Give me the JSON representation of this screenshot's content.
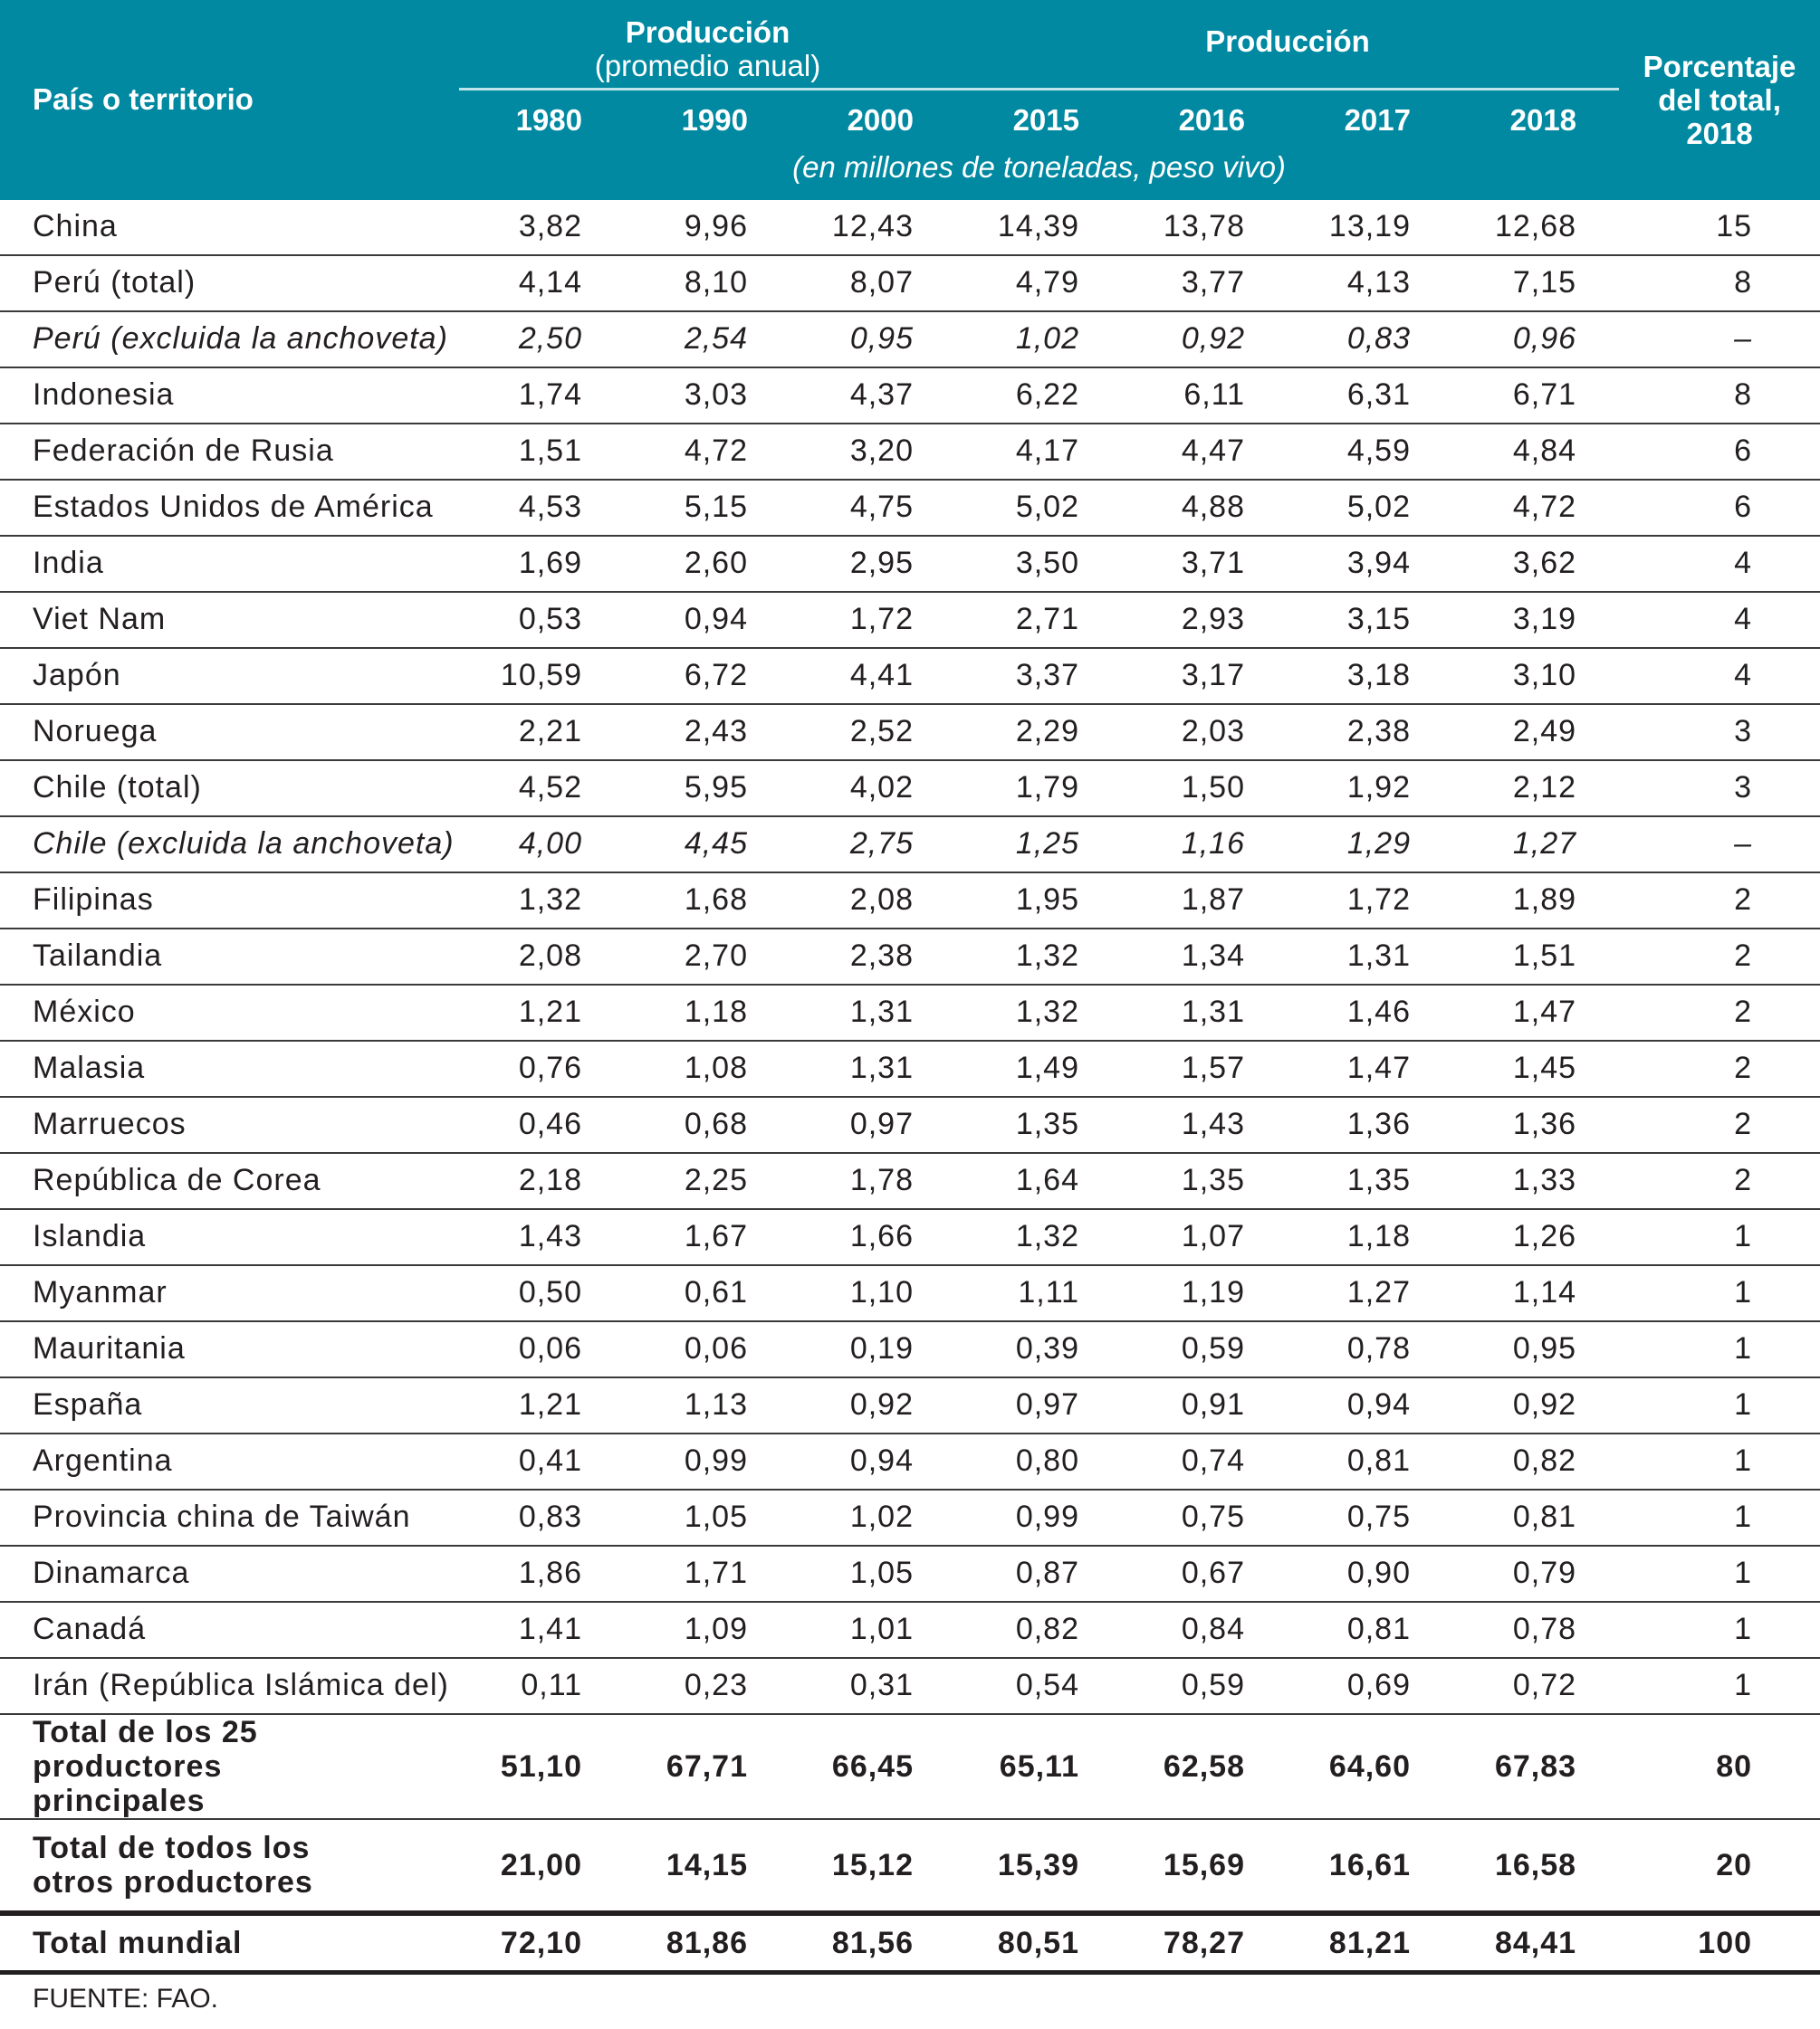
{
  "header": {
    "country_col": "País o territorio",
    "group1_title": "Producción",
    "group1_sub": "(promedio anual)",
    "group2_title": "Producción",
    "pct_col": [
      "Porcentaje",
      "del total,",
      "2018"
    ],
    "years": [
      "1980",
      "1990",
      "2000",
      "2015",
      "2016",
      "2017",
      "2018"
    ],
    "units": "(en millones de toneladas, peso vivo)"
  },
  "rows": [
    {
      "name": "China",
      "v": [
        "3,82",
        "9,96",
        "12,43",
        "14,39",
        "13,78",
        "13,19",
        "12,68"
      ],
      "pct": "15"
    },
    {
      "name": "Perú (total)",
      "v": [
        "4,14",
        "8,10",
        "8,07",
        "4,79",
        "3,77",
        "4,13",
        "7,15"
      ],
      "pct": "8"
    },
    {
      "name": "Perú (excluida la anchoveta)",
      "v": [
        "2,50",
        "2,54",
        "0,95",
        "1,02",
        "0,92",
        "0,83",
        "0,96"
      ],
      "pct": "–",
      "italic": true
    },
    {
      "name": "Indonesia",
      "v": [
        "1,74",
        "3,03",
        "4,37",
        "6,22",
        "6,11",
        "6,31",
        "6,71"
      ],
      "pct": "8"
    },
    {
      "name": "Federación de Rusia",
      "v": [
        "1,51",
        "4,72",
        "3,20",
        "4,17",
        "4,47",
        "4,59",
        "4,84"
      ],
      "pct": "6"
    },
    {
      "name": "Estados Unidos de América",
      "v": [
        "4,53",
        "5,15",
        "4,75",
        "5,02",
        "4,88",
        "5,02",
        "4,72"
      ],
      "pct": "6"
    },
    {
      "name": "India",
      "v": [
        "1,69",
        "2,60",
        "2,95",
        "3,50",
        "3,71",
        "3,94",
        "3,62"
      ],
      "pct": "4"
    },
    {
      "name": "Viet Nam",
      "v": [
        "0,53",
        "0,94",
        "1,72",
        "2,71",
        "2,93",
        "3,15",
        "3,19"
      ],
      "pct": "4"
    },
    {
      "name": "Japón",
      "v": [
        "10,59",
        "6,72",
        "4,41",
        "3,37",
        "3,17",
        "3,18",
        "3,10"
      ],
      "pct": "4"
    },
    {
      "name": "Noruega",
      "v": [
        "2,21",
        "2,43",
        "2,52",
        "2,29",
        "2,03",
        "2,38",
        "2,49"
      ],
      "pct": "3"
    },
    {
      "name": "Chile (total)",
      "v": [
        "4,52",
        "5,95",
        "4,02",
        "1,79",
        "1,50",
        "1,92",
        "2,12"
      ],
      "pct": "3"
    },
    {
      "name": "Chile (excluida la anchoveta)",
      "v": [
        "4,00",
        "4,45",
        "2,75",
        "1,25",
        "1,16",
        "1,29",
        "1,27"
      ],
      "pct": "–",
      "italic": true
    },
    {
      "name": "Filipinas",
      "v": [
        "1,32",
        "1,68",
        "2,08",
        "1,95",
        "1,87",
        "1,72",
        "1,89"
      ],
      "pct": "2"
    },
    {
      "name": "Tailandia",
      "v": [
        "2,08",
        "2,70",
        "2,38",
        "1,32",
        "1,34",
        "1,31",
        "1,51"
      ],
      "pct": "2"
    },
    {
      "name": "México",
      "v": [
        "1,21",
        "1,18",
        "1,31",
        "1,32",
        "1,31",
        "1,46",
        "1,47"
      ],
      "pct": "2"
    },
    {
      "name": "Malasia",
      "v": [
        "0,76",
        "1,08",
        "1,31",
        "1,49",
        "1,57",
        "1,47",
        "1,45"
      ],
      "pct": "2"
    },
    {
      "name": "Marruecos",
      "v": [
        "0,46",
        "0,68",
        "0,97",
        "1,35",
        "1,43",
        "1,36",
        "1,36"
      ],
      "pct": "2"
    },
    {
      "name": "República de Corea",
      "v": [
        "2,18",
        "2,25",
        "1,78",
        "1,64",
        "1,35",
        "1,35",
        "1,33"
      ],
      "pct": "2"
    },
    {
      "name": "Islandia",
      "v": [
        "1,43",
        "1,67",
        "1,66",
        "1,32",
        "1,07",
        "1,18",
        "1,26"
      ],
      "pct": "1"
    },
    {
      "name": "Myanmar",
      "v": [
        "0,50",
        "0,61",
        "1,10",
        "1,11",
        "1,19",
        "1,27",
        "1,14"
      ],
      "pct": "1"
    },
    {
      "name": "Mauritania",
      "v": [
        "0,06",
        "0,06",
        "0,19",
        "0,39",
        "0,59",
        "0,78",
        "0,95"
      ],
      "pct": "1"
    },
    {
      "name": "España",
      "v": [
        "1,21",
        "1,13",
        "0,92",
        "0,97",
        "0,91",
        "0,94",
        "0,92"
      ],
      "pct": "1"
    },
    {
      "name": "Argentina",
      "v": [
        "0,41",
        "0,99",
        "0,94",
        "0,80",
        "0,74",
        "0,81",
        "0,82"
      ],
      "pct": "1"
    },
    {
      "name": "Provincia china de Taiwán",
      "v": [
        "0,83",
        "1,05",
        "1,02",
        "0,99",
        "0,75",
        "0,75",
        "0,81"
      ],
      "pct": "1"
    },
    {
      "name": "Dinamarca",
      "v": [
        "1,86",
        "1,71",
        "1,05",
        "0,87",
        "0,67",
        "0,90",
        "0,79"
      ],
      "pct": "1"
    },
    {
      "name": "Canadá",
      "v": [
        "1,41",
        "1,09",
        "1,01",
        "0,82",
        "0,84",
        "0,81",
        "0,78"
      ],
      "pct": "1"
    },
    {
      "name": "Irán (República Islámica del)",
      "v": [
        "0,11",
        "0,23",
        "0,31",
        "0,54",
        "0,59",
        "0,69",
        "0,72"
      ],
      "pct": "1"
    }
  ],
  "totals": [
    {
      "name": "Total de los 25 productores principales",
      "v": [
        "51,10",
        "67,71",
        "66,45",
        "65,11",
        "62,58",
        "64,60",
        "67,83"
      ],
      "pct": "80"
    },
    {
      "name": "Total de todos los otros productores",
      "v": [
        "21,00",
        "14,15",
        "15,12",
        "15,39",
        "15,69",
        "16,61",
        "16,58"
      ],
      "pct": "20"
    },
    {
      "name": "Total mundial",
      "v": [
        "72,10",
        "81,86",
        "81,56",
        "80,51",
        "78,27",
        "81,21",
        "84,41"
      ],
      "pct": "100"
    }
  ],
  "source": "FUENTE: FAO.",
  "colors": {
    "header_bg": "#0089a1"
  }
}
